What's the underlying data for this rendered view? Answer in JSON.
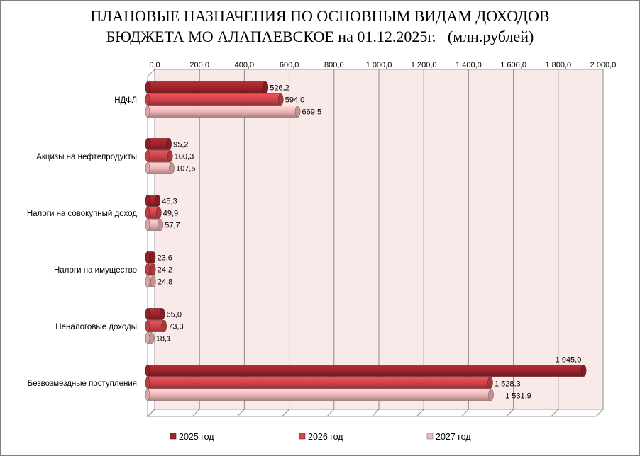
{
  "chart_data": {
    "type": "bar",
    "orientation": "horizontal",
    "title_line1": "ПЛАНОВЫЕ НАЗНАЧЕНИЯ ПО ОСНОВНЫМ ВИДАМ ДОХОДОВ",
    "title_line2": "БЮДЖЕТА МО АЛАПАЕВСКОЕ на 01.12.2025г.   (млн.рублей)",
    "categories": [
      "НДФЛ",
      "Акцизы на нефтепродукты",
      "Налоги на совокупный доход",
      "Налоги на имущество",
      "Неналоговые доходы",
      "Безвозмездные поступления"
    ],
    "series": [
      {
        "name": "2025 год",
        "color": "#a0262c",
        "values": [
          526.2,
          95.2,
          45.3,
          23.6,
          65.0,
          1945.0
        ],
        "labels": [
          "526,2",
          "95,2",
          "45,3",
          "23,6",
          "65,0",
          "1 945,0"
        ]
      },
      {
        "name": "2026 год",
        "color": "#d2474c",
        "values": [
          594.0,
          100.3,
          49.9,
          24.2,
          73.3,
          1528.3
        ],
        "labels": [
          "594,0",
          "100,3",
          "49,9",
          "24,2",
          "73,3",
          "1 528,3"
        ]
      },
      {
        "name": "2027 год",
        "color": "#f2b9bc",
        "values": [
          669.5,
          107.5,
          57.7,
          24.8,
          18.1,
          1531.9
        ],
        "labels": [
          "669,5",
          "107,5",
          "57,7",
          "24,8",
          "18,1",
          "1 531,9"
        ]
      }
    ],
    "xlim": [
      0,
      2000
    ],
    "ticks": [
      0,
      200,
      400,
      600,
      800,
      1000,
      1200,
      1400,
      1600,
      1800,
      2000
    ],
    "tick_labels": [
      "0,0",
      "200,0",
      "400,0",
      "600,0",
      "800,0",
      "1 000,0",
      "1 200,0",
      "1 400,0",
      "1 600,0",
      "1 800,0",
      "2 000,0"
    ],
    "x_axis_position": "top",
    "grid": true,
    "legend_position": "bottom",
    "plot_background": "#f9e9e9"
  }
}
